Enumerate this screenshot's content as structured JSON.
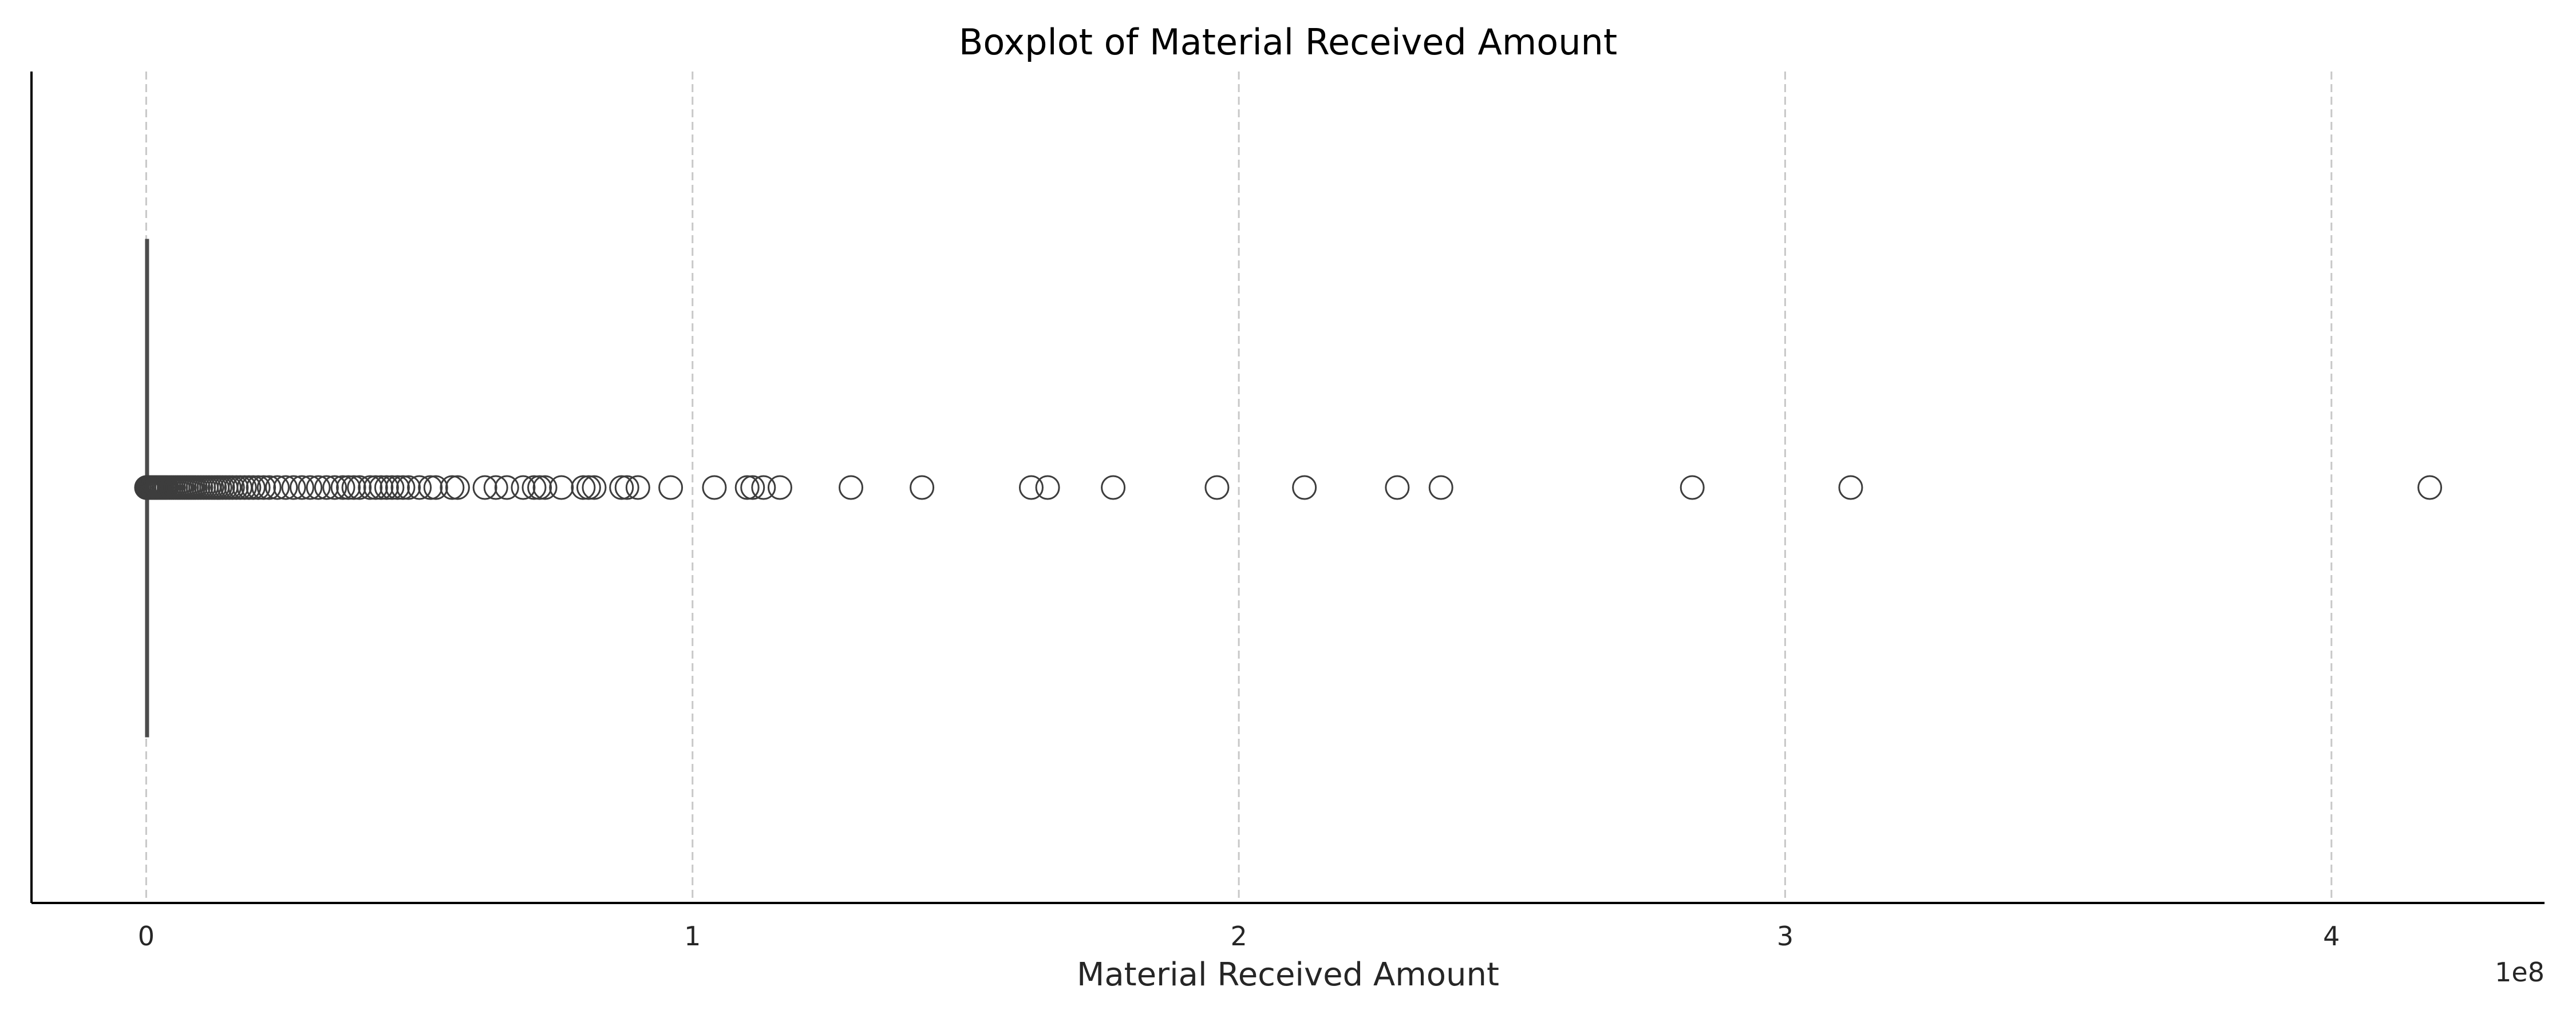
{
  "chart_data": {
    "type": "boxplot",
    "title": "Boxplot of Material Received Amount",
    "xlabel": "Material Received Amount",
    "ylabel": "",
    "x_offset_label": "1e8",
    "x_ticks": [
      0,
      1,
      2,
      3,
      4
    ],
    "x_tick_labels": [
      "0",
      "1",
      "2",
      "3",
      "4"
    ],
    "xlim": [
      -0.21,
      4.39
    ],
    "grid": {
      "x": true,
      "y": false,
      "style": "dashed"
    },
    "colors": {
      "box": "#4c4c4c",
      "outlier_edge": "#3d3d3d",
      "grid": "#c8c8c8",
      "axis": "#000000"
    },
    "box": {
      "min": 0,
      "q1": 0,
      "median": 0,
      "q3": 0,
      "max": 0.0003
    },
    "outliers": [
      0.0005,
      0.001,
      0.002,
      0.003,
      0.004,
      0.005,
      0.006,
      0.008,
      0.01,
      0.012,
      0.014,
      0.016,
      0.018,
      0.02,
      0.023,
      0.026,
      0.029,
      0.032,
      0.035,
      0.038,
      0.042,
      0.046,
      0.05,
      0.054,
      0.058,
      0.062,
      0.066,
      0.07,
      0.074,
      0.078,
      0.082,
      0.086,
      0.09,
      0.095,
      0.1,
      0.105,
      0.11,
      0.115,
      0.12,
      0.125,
      0.13,
      0.135,
      0.14,
      0.146,
      0.152,
      0.158,
      0.165,
      0.172,
      0.18,
      0.188,
      0.196,
      0.205,
      0.215,
      0.225,
      0.24,
      0.255,
      0.27,
      0.285,
      0.3,
      0.315,
      0.33,
      0.345,
      0.36,
      0.37,
      0.38,
      0.39,
      0.41,
      0.42,
      0.43,
      0.44,
      0.45,
      0.46,
      0.47,
      0.48,
      0.5,
      0.52,
      0.53,
      0.56,
      0.57,
      0.62,
      0.64,
      0.66,
      0.69,
      0.71,
      0.72,
      0.73,
      0.76,
      0.8,
      0.81,
      0.82,
      0.87,
      0.88,
      0.9,
      0.96,
      1.04,
      1.1,
      1.11,
      1.13,
      1.16,
      1.29,
      1.42,
      1.62,
      1.65,
      1.77,
      1.96,
      2.12,
      2.29,
      2.37,
      2.83,
      3.12,
      4.18
    ]
  }
}
